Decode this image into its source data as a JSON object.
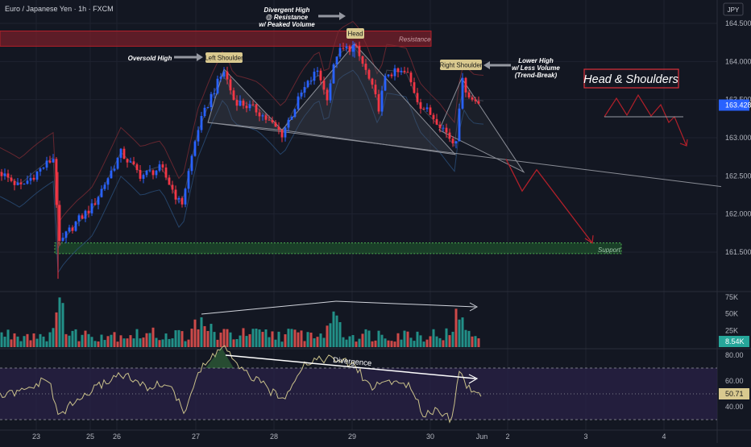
{
  "header": {
    "symbol_title": "Euro / Japanese Yen · 1h · FXCM",
    "currency": "JPY"
  },
  "colors": {
    "background": "#131722",
    "grid": "#1f2330",
    "bull": "#26a69a",
    "bear": "#ef5350",
    "candle_up": "#2962ff",
    "candle_down": "#f23645",
    "resistance_zone": "#7d1f2a",
    "support_zone": "#1e4d2b",
    "pattern_fill": "#4a4e5a",
    "rsi_line": "#c9c08a",
    "rsi_band": "#2a2147",
    "last_price_badge": "#2962ff",
    "arrow_red": "#b2202a"
  },
  "annotations": {
    "resistance": "Resistance",
    "support": "Support",
    "head": "Head",
    "left_shoulder": "Left Shoulder",
    "right_shoulder": "Right Shoulder",
    "oversold_high": "Oversold High",
    "divergent_high": [
      "Divergent High",
      "@ Resistance",
      "w/ Peaked Volume"
    ],
    "lower_high": [
      "Lower High",
      "w/ Less Volume",
      "(Trend-Break)"
    ],
    "pattern_title": "Head & Shoulders",
    "divergence": "Divergence"
  },
  "chart_data": [
    {
      "type": "candlestick",
      "title": "Euro / Japanese Yen · 1h · FXCM",
      "price_axis_ticks": [
        164.5,
        164.0,
        163.5,
        163.0,
        162.5,
        162.0,
        161.5
      ],
      "price_axis_labels": [
        "164.500",
        "164.000",
        "163.500",
        "163.000",
        "162.500",
        "162.000",
        "161.500"
      ],
      "ylim": [
        161.2,
        164.7
      ],
      "last_price": "163.428",
      "x_labels": [
        "23",
        "25",
        "26",
        "27",
        "28",
        "29",
        "30",
        "Jun",
        "2",
        "3",
        "4"
      ],
      "resistance_zone": [
        164.2,
        164.4
      ],
      "support_zone": [
        161.48,
        161.62
      ],
      "key_points": {
        "left_shoulder_high": 163.9,
        "head_high": 164.23,
        "right_shoulder_high": 163.78,
        "neckline_start": 163.2,
        "neckline_mid": 163.1,
        "neckline_end": 162.78,
        "swing_low": 161.45
      }
    },
    {
      "type": "bar",
      "name": "volume",
      "axis_labels": [
        "75K",
        "50K",
        "25K"
      ],
      "axis_values": [
        75000,
        50000,
        25000
      ],
      "last_value": "8.54K"
    },
    {
      "type": "line",
      "name": "RSI",
      "axis_labels": [
        "80.00",
        "60.00",
        "40.00"
      ],
      "axis_values": [
        80,
        60,
        40
      ],
      "last_value": "50.71",
      "band": [
        30,
        70
      ]
    }
  ]
}
